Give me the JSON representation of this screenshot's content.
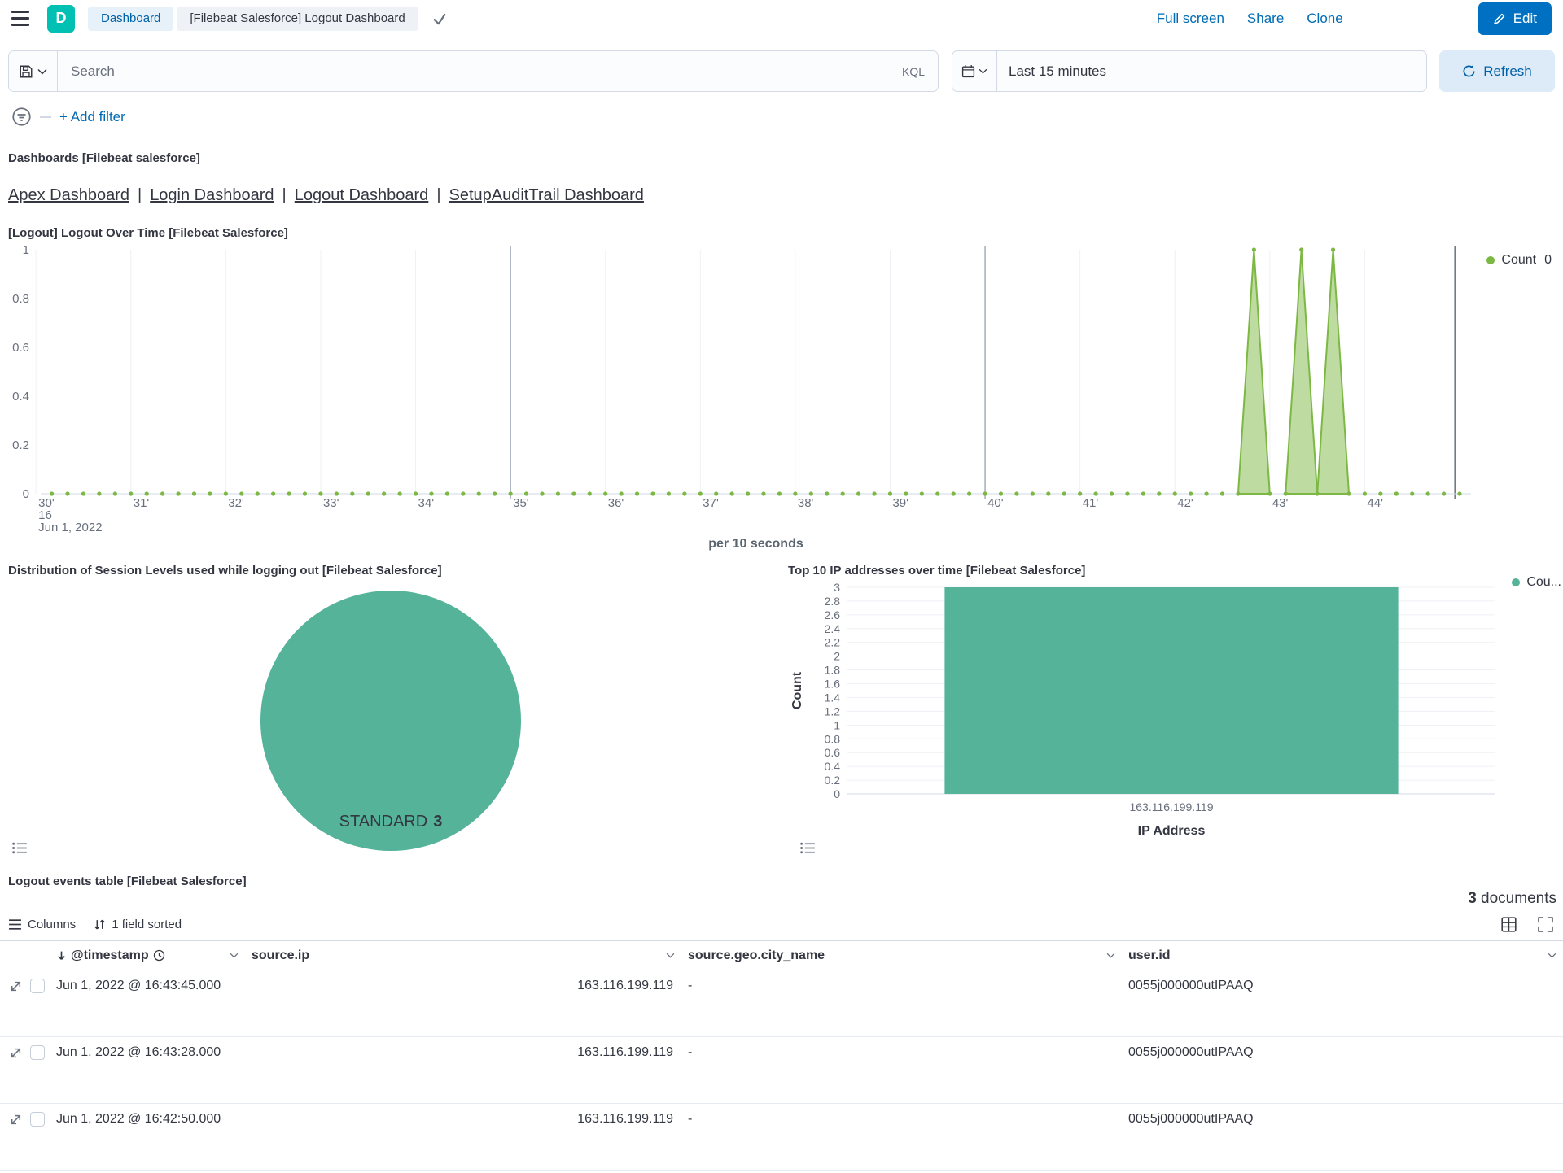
{
  "topbar": {
    "logo_letter": "D",
    "breadcrumb_dashboard": "Dashboard",
    "breadcrumb_current": "[Filebeat Salesforce] Logout Dashboard",
    "full_screen": "Full screen",
    "share": "Share",
    "clone": "Clone",
    "edit": "Edit"
  },
  "query_bar": {
    "search_placeholder": "Search",
    "kql": "KQL",
    "time_range": "Last 15 minutes",
    "refresh": "Refresh"
  },
  "filter_bar": {
    "add_filter": "+ Add filter"
  },
  "markdown_panel": {
    "heading": "Dashboards [Filebeat salesforce]",
    "links": [
      "Apex Dashboard",
      "Login Dashboard",
      "Logout Dashboard",
      "SetupAuditTrail Dashboard"
    ],
    "separator": "|"
  },
  "chart_data": [
    {
      "id": "logout_over_time",
      "type": "area",
      "title": "[Logout] Logout Over Time [Filebeat Salesforce]",
      "xlabel": "per 10 seconds",
      "x_domain_minutes": [
        30.05,
        45.12
      ],
      "x_tick_minutes": [
        30,
        31,
        32,
        33,
        34,
        35,
        36,
        37,
        38,
        39,
        40,
        41,
        42,
        43,
        44
      ],
      "x_tick_labels": [
        "30'",
        "31'",
        "32'",
        "33'",
        "34'",
        "35'",
        "36'",
        "37'",
        "38'",
        "39'",
        "40'",
        "41'",
        "42'",
        "43'",
        "44'"
      ],
      "x_start_context": [
        "16",
        "Jun 1, 2022"
      ],
      "major_gridline_minutes": [
        35,
        40
      ],
      "end_marker_minute": 44.95,
      "ylim": [
        0,
        1
      ],
      "y_ticks": [
        0,
        0.2,
        0.4,
        0.6,
        0.8,
        1
      ],
      "points_interval_seconds": 10,
      "events": [
        {
          "minute": 42.833,
          "value": 1
        },
        {
          "minute": 43.333,
          "value": 1
        },
        {
          "minute": 43.667,
          "value": 1
        }
      ],
      "series_name": "Count",
      "legend_value": "0",
      "color": "#7DB844",
      "fill_opacity": 0.5
    },
    {
      "id": "session_levels_pie",
      "type": "pie",
      "title": "Distribution of Session Levels used while logging out [Filebeat Salesforce]",
      "slices": [
        {
          "label": "STANDARD",
          "value": "3",
          "color": "#54B399"
        }
      ]
    },
    {
      "id": "top_ips_bar",
      "type": "bar",
      "title": "Top 10 IP addresses over time [Filebeat Salesforce]",
      "categories": [
        "163.116.199.119"
      ],
      "values": [
        3
      ],
      "ylim": [
        0,
        3
      ],
      "y_tick_step": 0.2,
      "xlabel": "IP Address",
      "ylabel": "Count",
      "legend_label": "Cou...",
      "color": "#54B399",
      "grid": true
    }
  ],
  "events_table": {
    "title": "Logout events table [Filebeat Salesforce]",
    "doc_count": "3",
    "doc_count_label": "documents",
    "toolbar": {
      "columns": "Columns",
      "sorted": "1 field sorted"
    },
    "columns": [
      {
        "name": "@timestamp"
      },
      {
        "name": "source.ip"
      },
      {
        "name": "source.geo.city_name"
      },
      {
        "name": "user.id"
      }
    ],
    "rows": [
      [
        "Jun 1, 2022 @ 16:43:45.000",
        "163.116.199.119",
        "-",
        "0055j000000utIPAAQ"
      ],
      [
        "Jun 1, 2022 @ 16:43:28.000",
        "163.116.199.119",
        "-",
        "0055j000000utIPAAQ"
      ],
      [
        "Jun 1, 2022 @ 16:42:50.000",
        "163.116.199.119",
        "-",
        "0055j000000utIPAAQ"
      ]
    ]
  },
  "colors": {
    "primary_button": "#0071C2",
    "link_blue": "#006BB4",
    "teal": "#54B399",
    "logo_teal": "#00BFB3",
    "series_green": "#7DB844"
  }
}
